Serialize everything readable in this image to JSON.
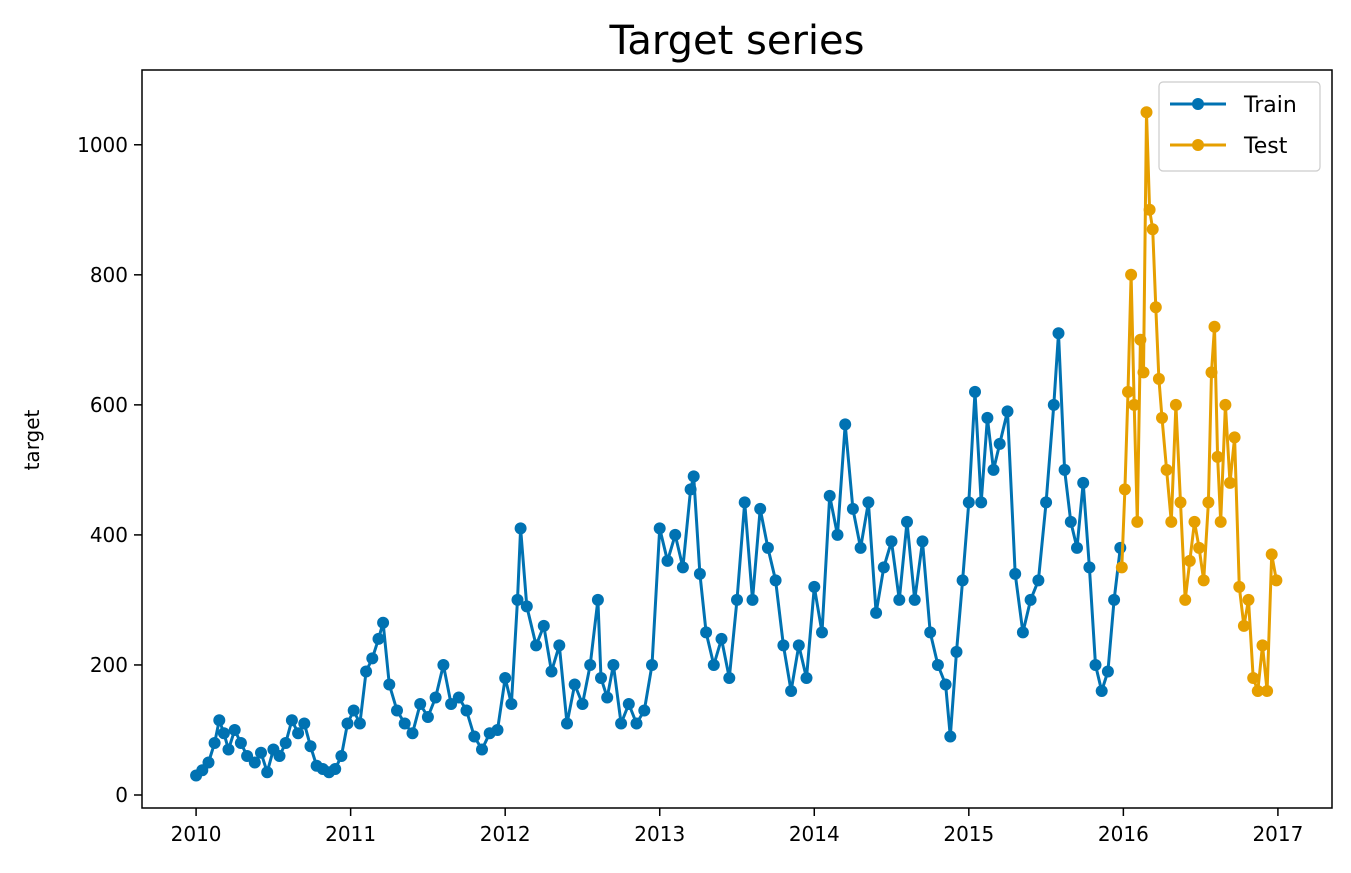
{
  "chart_data": {
    "type": "line",
    "title": "Target series",
    "xlabel": "",
    "ylabel": "target",
    "xlim": [
      2009.65,
      2017.35
    ],
    "ylim": [
      -20,
      1115
    ],
    "grid": false,
    "legend_position": "top-right",
    "x_ticks": [
      2010,
      2011,
      2012,
      2013,
      2014,
      2015,
      2016,
      2017
    ],
    "x_tick_labels": [
      "2010",
      "2011",
      "2012",
      "2013",
      "2014",
      "2015",
      "2016",
      "2017"
    ],
    "y_ticks": [
      0,
      200,
      400,
      600,
      800,
      1000
    ],
    "y_tick_labels": [
      "0",
      "200",
      "400",
      "600",
      "800",
      "1000"
    ],
    "series": [
      {
        "name": "Train",
        "color": "#0072b2",
        "marker": "circle",
        "points": [
          [
            2010.0,
            30
          ],
          [
            2010.04,
            38
          ],
          [
            2010.08,
            50
          ],
          [
            2010.12,
            80
          ],
          [
            2010.15,
            115
          ],
          [
            2010.18,
            95
          ],
          [
            2010.21,
            70
          ],
          [
            2010.25,
            100
          ],
          [
            2010.29,
            80
          ],
          [
            2010.33,
            60
          ],
          [
            2010.38,
            50
          ],
          [
            2010.42,
            65
          ],
          [
            2010.46,
            35
          ],
          [
            2010.5,
            70
          ],
          [
            2010.54,
            60
          ],
          [
            2010.58,
            80
          ],
          [
            2010.62,
            115
          ],
          [
            2010.66,
            95
          ],
          [
            2010.7,
            110
          ],
          [
            2010.74,
            75
          ],
          [
            2010.78,
            45
          ],
          [
            2010.82,
            40
          ],
          [
            2010.86,
            35
          ],
          [
            2010.9,
            40
          ],
          [
            2010.94,
            60
          ],
          [
            2010.98,
            110
          ],
          [
            2011.02,
            130
          ],
          [
            2011.06,
            110
          ],
          [
            2011.1,
            190
          ],
          [
            2011.14,
            210
          ],
          [
            2011.18,
            240
          ],
          [
            2011.21,
            265
          ],
          [
            2011.25,
            170
          ],
          [
            2011.3,
            130
          ],
          [
            2011.35,
            110
          ],
          [
            2011.4,
            95
          ],
          [
            2011.45,
            140
          ],
          [
            2011.5,
            120
          ],
          [
            2011.55,
            150
          ],
          [
            2011.6,
            200
          ],
          [
            2011.65,
            140
          ],
          [
            2011.7,
            150
          ],
          [
            2011.75,
            130
          ],
          [
            2011.8,
            90
          ],
          [
            2011.85,
            70
          ],
          [
            2011.9,
            95
          ],
          [
            2011.95,
            100
          ],
          [
            2012.0,
            180
          ],
          [
            2012.04,
            140
          ],
          [
            2012.08,
            300
          ],
          [
            2012.1,
            410
          ],
          [
            2012.14,
            290
          ],
          [
            2012.2,
            230
          ],
          [
            2012.25,
            260
          ],
          [
            2012.3,
            190
          ],
          [
            2012.35,
            230
          ],
          [
            2012.4,
            110
          ],
          [
            2012.45,
            170
          ],
          [
            2012.5,
            140
          ],
          [
            2012.55,
            200
          ],
          [
            2012.6,
            300
          ],
          [
            2012.62,
            180
          ],
          [
            2012.66,
            150
          ],
          [
            2012.7,
            200
          ],
          [
            2012.75,
            110
          ],
          [
            2012.8,
            140
          ],
          [
            2012.85,
            110
          ],
          [
            2012.9,
            130
          ],
          [
            2012.95,
            200
          ],
          [
            2013.0,
            410
          ],
          [
            2013.05,
            360
          ],
          [
            2013.1,
            400
          ],
          [
            2013.15,
            350
          ],
          [
            2013.2,
            470
          ],
          [
            2013.22,
            490
          ],
          [
            2013.26,
            340
          ],
          [
            2013.3,
            250
          ],
          [
            2013.35,
            200
          ],
          [
            2013.4,
            240
          ],
          [
            2013.45,
            180
          ],
          [
            2013.5,
            300
          ],
          [
            2013.55,
            450
          ],
          [
            2013.6,
            300
          ],
          [
            2013.65,
            440
          ],
          [
            2013.7,
            380
          ],
          [
            2013.75,
            330
          ],
          [
            2013.8,
            230
          ],
          [
            2013.85,
            160
          ],
          [
            2013.9,
            230
          ],
          [
            2013.95,
            180
          ],
          [
            2014.0,
            320
          ],
          [
            2014.05,
            250
          ],
          [
            2014.1,
            460
          ],
          [
            2014.15,
            400
          ],
          [
            2014.2,
            570
          ],
          [
            2014.25,
            440
          ],
          [
            2014.3,
            380
          ],
          [
            2014.35,
            450
          ],
          [
            2014.4,
            280
          ],
          [
            2014.45,
            350
          ],
          [
            2014.5,
            390
          ],
          [
            2014.55,
            300
          ],
          [
            2014.6,
            420
          ],
          [
            2014.65,
            300
          ],
          [
            2014.7,
            390
          ],
          [
            2014.75,
            250
          ],
          [
            2014.8,
            200
          ],
          [
            2014.85,
            170
          ],
          [
            2014.88,
            90
          ],
          [
            2014.92,
            220
          ],
          [
            2014.96,
            330
          ],
          [
            2015.0,
            450
          ],
          [
            2015.04,
            620
          ],
          [
            2015.08,
            450
          ],
          [
            2015.12,
            580
          ],
          [
            2015.16,
            500
          ],
          [
            2015.2,
            540
          ],
          [
            2015.25,
            590
          ],
          [
            2015.3,
            340
          ],
          [
            2015.35,
            250
          ],
          [
            2015.4,
            300
          ],
          [
            2015.45,
            330
          ],
          [
            2015.5,
            450
          ],
          [
            2015.55,
            600
          ],
          [
            2015.58,
            710
          ],
          [
            2015.62,
            500
          ],
          [
            2015.66,
            420
          ],
          [
            2015.7,
            380
          ],
          [
            2015.74,
            480
          ],
          [
            2015.78,
            350
          ],
          [
            2015.82,
            200
          ],
          [
            2015.86,
            160
          ],
          [
            2015.9,
            190
          ],
          [
            2015.94,
            300
          ],
          [
            2015.98,
            380
          ]
        ]
      },
      {
        "name": "Test",
        "color": "#e69f00",
        "marker": "circle",
        "points": [
          [
            2015.99,
            350
          ],
          [
            2016.01,
            470
          ],
          [
            2016.03,
            620
          ],
          [
            2016.05,
            800
          ],
          [
            2016.07,
            600
          ],
          [
            2016.09,
            420
          ],
          [
            2016.11,
            700
          ],
          [
            2016.13,
            650
          ],
          [
            2016.15,
            1050
          ],
          [
            2016.17,
            900
          ],
          [
            2016.19,
            870
          ],
          [
            2016.21,
            750
          ],
          [
            2016.23,
            640
          ],
          [
            2016.25,
            580
          ],
          [
            2016.28,
            500
          ],
          [
            2016.31,
            420
          ],
          [
            2016.34,
            600
          ],
          [
            2016.37,
            450
          ],
          [
            2016.4,
            300
          ],
          [
            2016.43,
            360
          ],
          [
            2016.46,
            420
          ],
          [
            2016.49,
            380
          ],
          [
            2016.52,
            330
          ],
          [
            2016.55,
            450
          ],
          [
            2016.57,
            650
          ],
          [
            2016.59,
            720
          ],
          [
            2016.61,
            520
          ],
          [
            2016.63,
            420
          ],
          [
            2016.66,
            600
          ],
          [
            2016.69,
            480
          ],
          [
            2016.72,
            550
          ],
          [
            2016.75,
            320
          ],
          [
            2016.78,
            260
          ],
          [
            2016.81,
            300
          ],
          [
            2016.84,
            180
          ],
          [
            2016.87,
            160
          ],
          [
            2016.9,
            230
          ],
          [
            2016.93,
            160
          ],
          [
            2016.96,
            370
          ],
          [
            2016.99,
            330
          ]
        ]
      }
    ]
  }
}
